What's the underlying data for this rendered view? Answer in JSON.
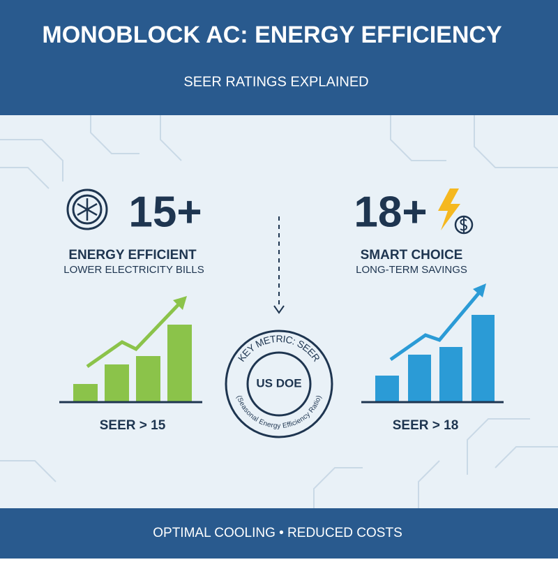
{
  "header": {
    "title": "MONOBLOCK AC: ENERGY EFFICIENCY",
    "subtitle": "SEER RATINGS EXPLAINED"
  },
  "left": {
    "value": "15+",
    "heading": "ENERGY EFFICIENT",
    "subheading": "LOWER ELECTRICITY BILLS",
    "caption": "SEER > 15"
  },
  "right": {
    "value": "18+",
    "heading": "SMART CHOICE",
    "subheading": "LONG-TERM SAVINGS",
    "caption": "SEER > 18"
  },
  "stamp": {
    "top": "KEY METRIC: SEER",
    "center": "US DOE",
    "bottom": "(Seasonal Energy Efficiency Ratio)"
  },
  "footer": {
    "text": "OPTIMAL COOLING • REDUCED COSTS"
  }
}
